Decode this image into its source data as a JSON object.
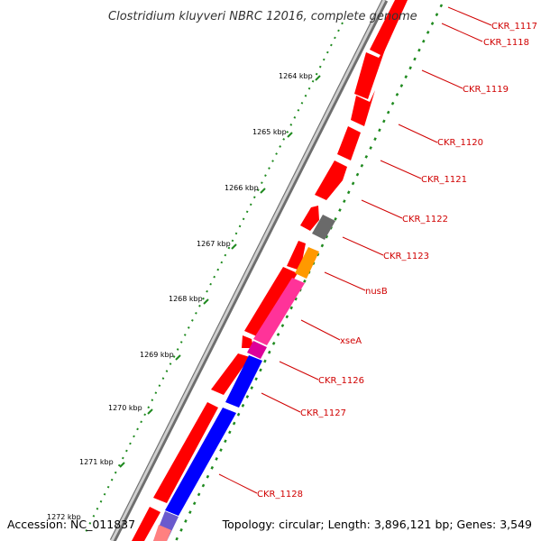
{
  "map": {
    "title": "Clostridium kluyveri NBRC 12016, complete genome",
    "accession": "Accession: NC_011837",
    "topology": "Topology: circular; Length: 3,896,121 bp; Genes: 3,549",
    "ticks": [
      "1264 kbp",
      "1265 kbp",
      "1266 kbp",
      "1267 kbp",
      "1268 kbp",
      "1269 kbp",
      "1270 kbp",
      "1271 kbp",
      "1272 kbp"
    ],
    "gene_labels": [
      "CKR_1117",
      "CKR_1118",
      "CKR_1119",
      "CKR_1120",
      "CKR_1121",
      "CKR_1122",
      "CKR_1123",
      "nusB",
      "xseA",
      "CKR_1126",
      "CKR_1127",
      "CKR_1128"
    ],
    "colors": {
      "cds": "#ff0000",
      "rna": "#7f7f7f",
      "nusB": "#ff9900",
      "xseA": "#ff3399",
      "forward": "#0000ff",
      "label": "#d00000",
      "gc": "#1f8a1f",
      "backbone": "#9a9a9a"
    }
  }
}
